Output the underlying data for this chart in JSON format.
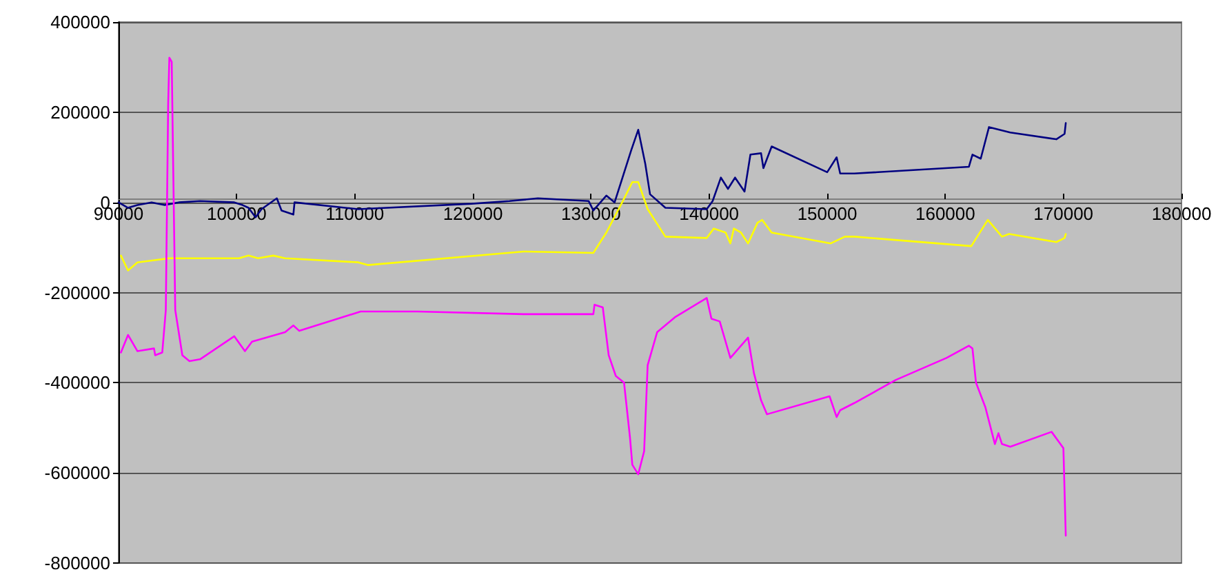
{
  "chart_data": {
    "type": "line",
    "xlim": [
      90000,
      180000
    ],
    "xticks": [
      90000,
      100000,
      110000,
      120000,
      130000,
      140000,
      150000,
      160000,
      170000,
      180000
    ],
    "ylim": [
      -800000,
      400000
    ],
    "yticks": [
      -800000,
      -600000,
      -400000,
      -200000,
      0,
      200000,
      400000
    ],
    "grid": "y",
    "marker": "none",
    "line_style": "solid",
    "series": [
      {
        "color": "#000080",
        "x": [
          90000,
          90800,
          91600,
          92800,
          93900,
          95100,
          96900,
          99800,
          100500,
          101000,
          101600,
          102100,
          103400,
          103800,
          104800,
          104900,
          110300,
          119900,
          123100,
          125500,
          129800,
          130200,
          131300,
          132000,
          133400,
          134000,
          134600,
          135000,
          136300,
          139800,
          140300,
          141000,
          141600,
          142200,
          143000,
          143500,
          144400,
          144600,
          145300,
          150000,
          150800,
          151100,
          152300,
          162000,
          162300,
          163000,
          163700,
          165500,
          169400,
          170100,
          170200
        ],
        "values": [
          0,
          -12000,
          -6000,
          0,
          -6000,
          0,
          3000,
          0,
          -6000,
          -12000,
          -33000,
          -15000,
          9000,
          -18000,
          -27000,
          0,
          -15000,
          -3000,
          3000,
          9000,
          3000,
          -18000,
          15000,
          0,
          115000,
          161000,
          85000,
          18000,
          -12000,
          -15000,
          3000,
          55000,
          30000,
          55000,
          24000,
          106000,
          109000,
          76000,
          124000,
          67000,
          100000,
          64000,
          64000,
          79000,
          106000,
          97000,
          167000,
          155000,
          140000,
          152000,
          176000
        ]
      },
      {
        "color": "#ffff00",
        "x": [
          90200,
          90800,
          91600,
          94300,
          100200,
          101000,
          101800,
          103100,
          104100,
          110300,
          111100,
          124300,
          130200,
          131300,
          132700,
          133500,
          134000,
          134800,
          136300,
          139800,
          140400,
          141400,
          141800,
          142100,
          142700,
          143300,
          144100,
          144500,
          145300,
          150300,
          151500,
          152300,
          162200,
          163600,
          164800,
          165400,
          169400,
          170100,
          170200
        ],
        "values": [
          -118000,
          -151000,
          -133000,
          -124000,
          -124000,
          -118000,
          -124000,
          -118000,
          -124000,
          -133000,
          -139000,
          -109000,
          -112000,
          -67000,
          3000,
          45000,
          45000,
          -15000,
          -76000,
          -79000,
          -58000,
          -67000,
          -91000,
          -58000,
          -67000,
          -91000,
          -45000,
          -39000,
          -67000,
          -91000,
          -76000,
          -76000,
          -97000,
          -39000,
          -76000,
          -70000,
          -88000,
          -79000,
          -70000
        ]
      },
      {
        "color": "#ff00ff",
        "x": [
          90200,
          90800,
          91600,
          93000,
          93100,
          93700,
          94000,
          94200,
          94300,
          94500,
          94800,
          95400,
          96000,
          96900,
          99800,
          100700,
          101300,
          104100,
          104800,
          105300,
          110500,
          115300,
          124300,
          130200,
          130300,
          131000,
          131500,
          132100,
          132800,
          133300,
          133500,
          134000,
          134500,
          134800,
          135600,
          137100,
          139800,
          140200,
          140900,
          141800,
          143300,
          143800,
          144400,
          144900,
          150200,
          150800,
          151100,
          152300,
          155800,
          160100,
          162000,
          162300,
          162600,
          163400,
          164200,
          164500,
          164800,
          165500,
          169000,
          170000,
          170200
        ],
        "values": [
          -333000,
          -294000,
          -330000,
          -324000,
          -339000,
          -333000,
          -239000,
          218000,
          321000,
          312000,
          -239000,
          -339000,
          -352000,
          -348000,
          -297000,
          -330000,
          -309000,
          -288000,
          -273000,
          -285000,
          -242000,
          -242000,
          -248000,
          -248000,
          -227000,
          -233000,
          -339000,
          -385000,
          -400000,
          -521000,
          -582000,
          -603000,
          -552000,
          -361000,
          -288000,
          -255000,
          -212000,
          -258000,
          -264000,
          -345000,
          -300000,
          -379000,
          -439000,
          -470000,
          -430000,
          -476000,
          -461000,
          -445000,
          -394000,
          -345000,
          -318000,
          -324000,
          -400000,
          -455000,
          -536000,
          -512000,
          -536000,
          -542000,
          -509000,
          -545000,
          -739000
        ]
      }
    ]
  }
}
